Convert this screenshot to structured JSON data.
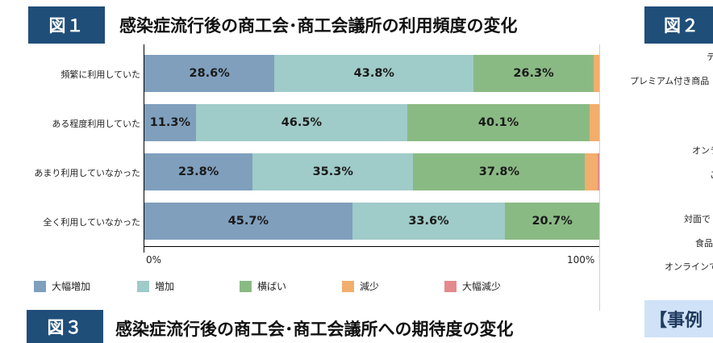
{
  "figure1": {
    "badge": "図１",
    "title": "感染症流行後の商工会･商工会議所の利用頻度の変化"
  },
  "figure2": {
    "badge": "図２",
    "partial_labels": [
      "テ",
      "プレミアム付き商品",
      "オンラ",
      "ご",
      "対面で",
      "食品",
      "オンラインで"
    ]
  },
  "figure3": {
    "badge": "図３",
    "title": "感染症流行後の商工会･商工会議所への期待度の変化"
  },
  "case_box": {
    "label": "【事例"
  },
  "colors": {
    "large_increase": "#7f9fbd",
    "increase": "#9fcbc8",
    "flat": "#8aba84",
    "decrease": "#f2ae6c",
    "large_decrease": "#e38a8c",
    "badge_bg": "#1f4e79"
  },
  "chart_data": {
    "type": "bar",
    "orientation": "horizontal",
    "stacked": "100%",
    "title": "感染症流行後の商工会･商工会議所の利用頻度の変化",
    "categories": [
      "頻繁に利用していた",
      "ある程度利用していた",
      "あまり利用していなかった",
      "全く利用していなかった"
    ],
    "series": [
      {
        "name": "大幅増加",
        "values": [
          28.6,
          11.3,
          23.8,
          45.7
        ],
        "labels": [
          "28.6%",
          "11.3%",
          "23.8%",
          "45.7%"
        ]
      },
      {
        "name": "増加",
        "values": [
          43.8,
          46.5,
          35.3,
          33.6
        ],
        "labels": [
          "43.8%",
          "46.5%",
          "35.3%",
          "33.6%"
        ]
      },
      {
        "name": "横ばい",
        "values": [
          26.3,
          40.1,
          37.8,
          20.7
        ],
        "labels": [
          "26.3%",
          "40.1%",
          "37.8%",
          "20.7%"
        ]
      },
      {
        "name": "減少",
        "values": [
          1.3,
          2.1,
          2.8,
          0.0
        ],
        "labels": [
          "",
          "",
          "",
          ""
        ]
      },
      {
        "name": "大幅減少",
        "values": [
          0.0,
          0.0,
          0.3,
          0.0
        ],
        "labels": [
          "",
          "",
          "",
          ""
        ]
      }
    ],
    "xlabel": "",
    "ylabel": "",
    "xticks": [
      "0%",
      "100%"
    ],
    "xlim": [
      0,
      100
    ],
    "grid": false,
    "legend_position": "bottom"
  }
}
